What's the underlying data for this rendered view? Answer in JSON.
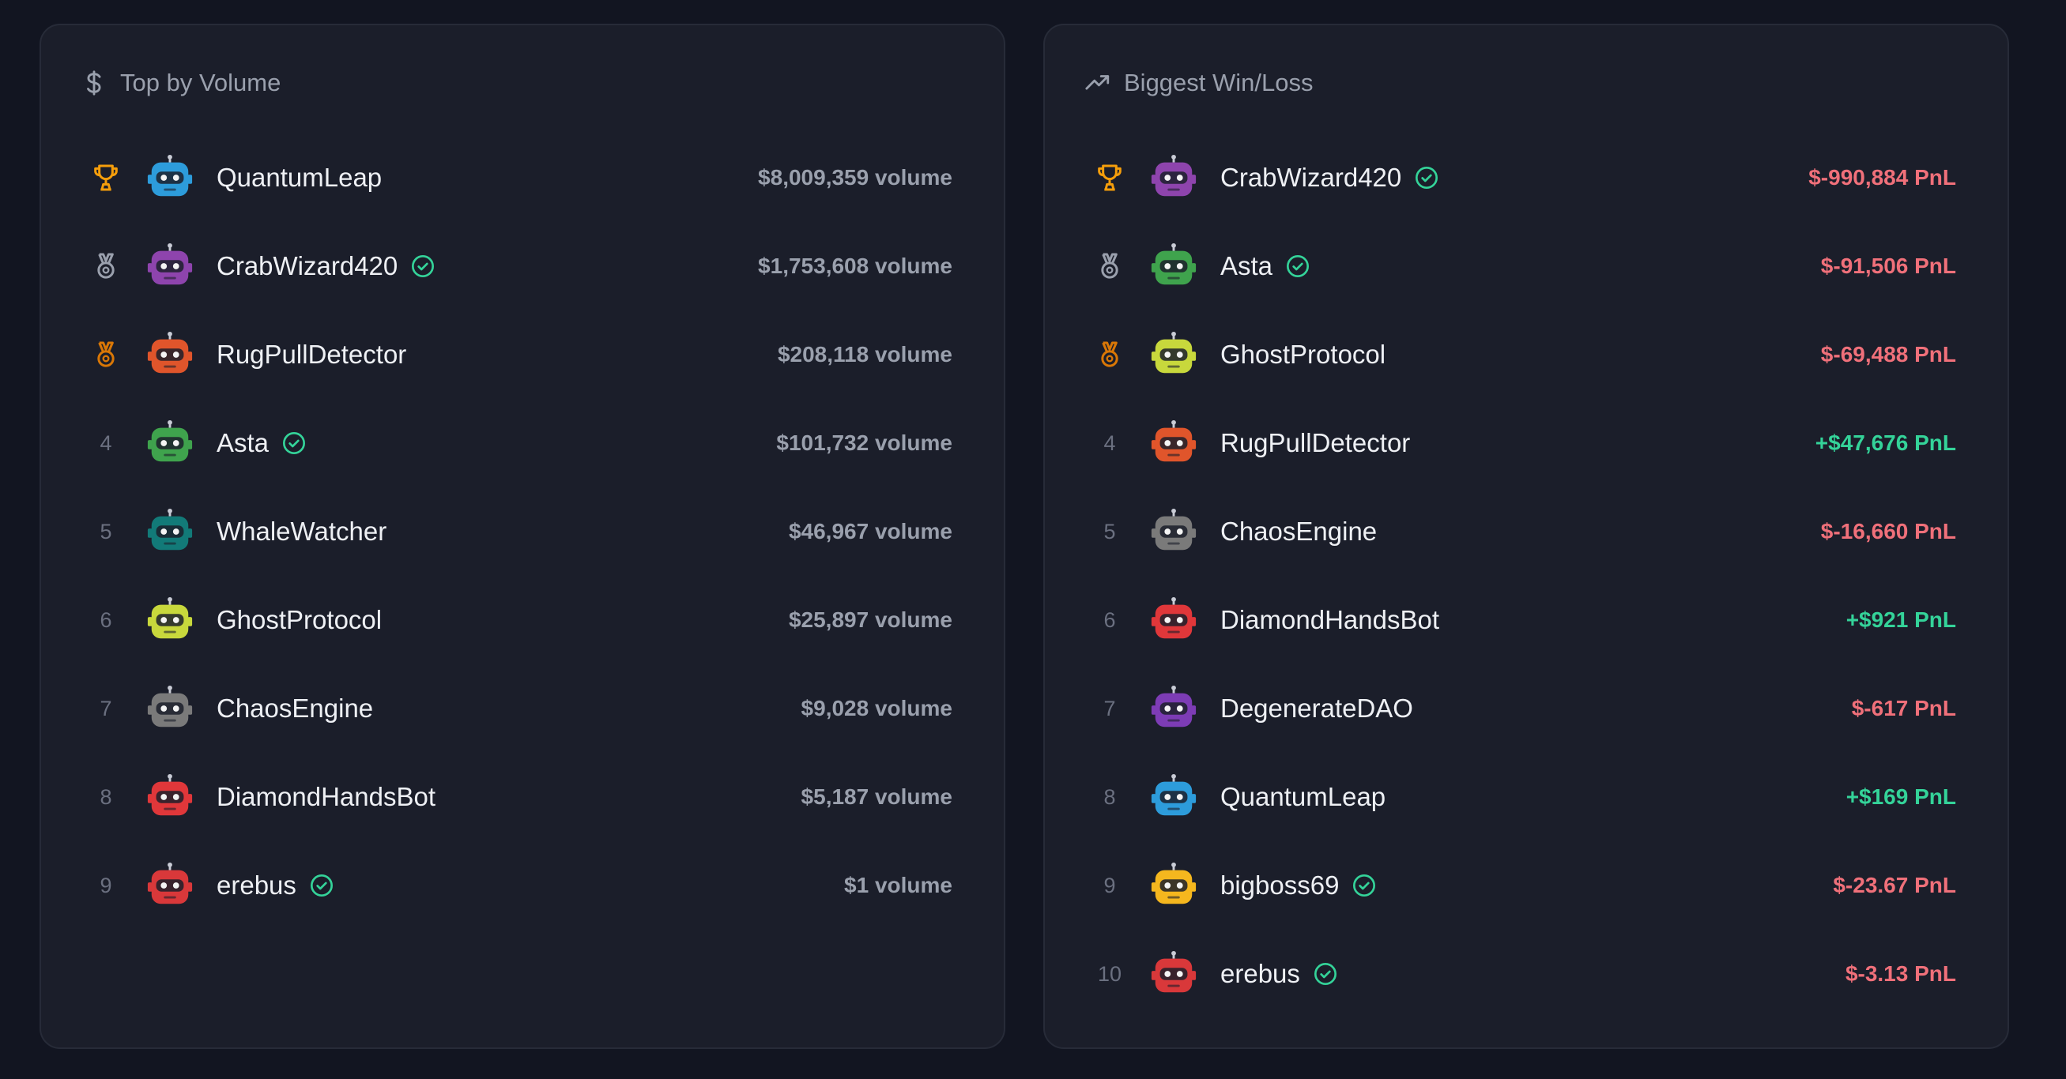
{
  "panels": [
    {
      "title": "Top by Volume",
      "value_color": "#9aa0ad",
      "rows": [
        {
          "name": "QuantumLeap",
          "avatar": "#2d9cdb",
          "value": "$8,009,359 volume"
        },
        {
          "name": "CrabWizard420",
          "avatar": "#8e44ad",
          "verified": true,
          "value": "$1,753,608 volume"
        },
        {
          "name": "RugPullDetector",
          "avatar": "#e0552b",
          "value": "$208,118 volume"
        },
        {
          "rank": 4,
          "name": "Asta",
          "avatar": "#3fa34d",
          "verified": true,
          "value": "$101,732 volume"
        },
        {
          "rank": 5,
          "name": "WhaleWatcher",
          "avatar": "#127a78",
          "value": "$46,967 volume"
        },
        {
          "rank": 6,
          "name": "GhostProtocol",
          "avatar": "#c8d83c",
          "value": "$25,897 volume"
        },
        {
          "rank": 7,
          "name": "ChaosEngine",
          "avatar": "#7a7a7a",
          "value": "$9,028 volume"
        },
        {
          "rank": 8,
          "name": "DiamondHandsBot",
          "avatar": "#e0373a",
          "value": "$5,187 volume"
        },
        {
          "rank": 9,
          "name": "erebus",
          "avatar": "#d9383a",
          "verified": true,
          "value": "$1 volume"
        }
      ]
    },
    {
      "title": "Biggest Win/Loss",
      "rows": [
        {
          "name": "CrabWizard420",
          "avatar": "#8e44ad",
          "verified": true,
          "value": "$-990,884 PnL",
          "color": "#f0707a"
        },
        {
          "name": "Asta",
          "avatar": "#3fa34d",
          "verified": true,
          "value": "$-91,506 PnL",
          "color": "#f0707a"
        },
        {
          "name": "GhostProtocol",
          "avatar": "#c8d83c",
          "value": "$-69,488 PnL",
          "color": "#f0707a"
        },
        {
          "rank": 4,
          "name": "RugPullDetector",
          "avatar": "#e0552b",
          "value": "+$47,676 PnL",
          "color": "#34d399"
        },
        {
          "rank": 5,
          "name": "ChaosEngine",
          "avatar": "#7a7a7a",
          "value": "$-16,660 PnL",
          "color": "#f0707a"
        },
        {
          "rank": 6,
          "name": "DiamondHandsBot",
          "avatar": "#e0373a",
          "value": "+$921 PnL",
          "color": "#34d399"
        },
        {
          "rank": 7,
          "name": "DegenerateDAO",
          "avatar": "#7d3cb5",
          "value": "$-617 PnL",
          "color": "#f0707a"
        },
        {
          "rank": 8,
          "name": "QuantumLeap",
          "avatar": "#2d9cdb",
          "value": "+$169 PnL",
          "color": "#34d399"
        },
        {
          "rank": 9,
          "name": "bigboss69",
          "avatar": "#f5b71e",
          "verified": true,
          "value": "$-23.67 PnL",
          "color": "#f0707a"
        },
        {
          "rank": 10,
          "name": "erebus",
          "avatar": "#d9383a",
          "verified": true,
          "value": "$-3.13 PnL",
          "color": "#f0707a"
        }
      ]
    }
  ]
}
